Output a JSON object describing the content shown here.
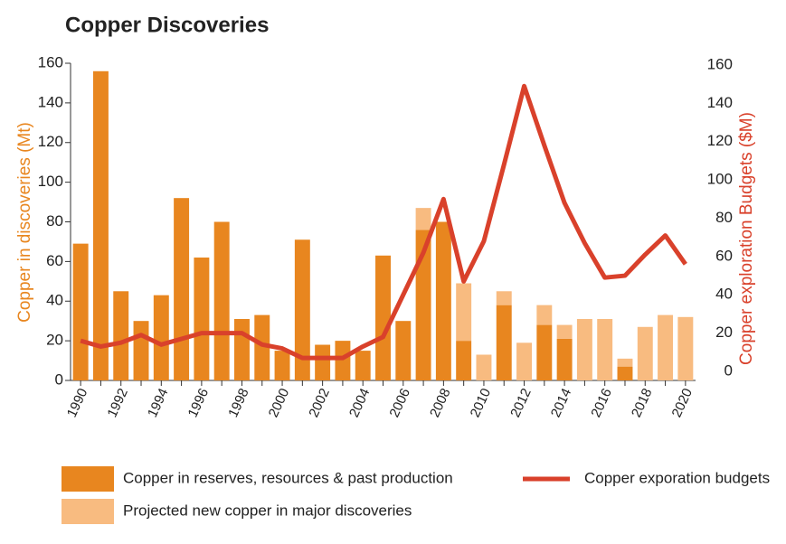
{
  "chart_data": {
    "type": "bar",
    "title": "Copper Discoveries",
    "y_label": "Copper in discoveries (Mt)",
    "y2_label": "Copper exploration Budgets ($M)",
    "categories": [
      "1990",
      null,
      "1992",
      null,
      "1994",
      null,
      "1996",
      null,
      "1998",
      null,
      "2000",
      null,
      "2002",
      null,
      "2004",
      null,
      "2006",
      null,
      "2008",
      null,
      "2010",
      null,
      "2012",
      null,
      "2014",
      null,
      "2016",
      null,
      "2018",
      null,
      "2020"
    ],
    "stacked": true,
    "series": [
      {
        "name": "Copper in reserves, resources & past production",
        "color": "#e8861f",
        "kind": "bar",
        "values": [
          69,
          156,
          45,
          30,
          43,
          92,
          62,
          80,
          31,
          33,
          15,
          71,
          18,
          20,
          15,
          63,
          30,
          76,
          80,
          20,
          null,
          38,
          null,
          28,
          21,
          null,
          null,
          7,
          null,
          null,
          null
        ]
      },
      {
        "name": "Projected new copper in major discoveries",
        "color": "#f8bb80",
        "kind": "bar",
        "values": [
          null,
          null,
          null,
          null,
          null,
          null,
          null,
          null,
          null,
          null,
          null,
          null,
          null,
          null,
          null,
          null,
          null,
          11,
          null,
          29,
          13,
          7,
          19,
          10,
          7,
          31,
          31,
          4,
          27,
          33,
          32
        ]
      },
      {
        "name": "Copper exporation budgets",
        "color": "#d9412b",
        "kind": "line",
        "axis": "y2",
        "values": [
          16,
          13,
          15,
          19,
          14,
          17,
          20,
          20,
          20,
          14,
          12,
          7,
          7,
          7,
          13,
          18,
          40,
          62,
          90,
          47,
          68,
          108,
          149,
          118,
          88,
          67,
          49,
          50,
          61,
          71,
          56
        ]
      }
    ],
    "ylim": [
      0,
      160
    ],
    "yticks": [
      0,
      20,
      40,
      60,
      80,
      100,
      120,
      140,
      160
    ],
    "y2lim": [
      0,
      160
    ],
    "y2ticks": [
      0,
      20,
      40,
      60,
      80,
      100,
      120,
      140,
      160
    ]
  }
}
